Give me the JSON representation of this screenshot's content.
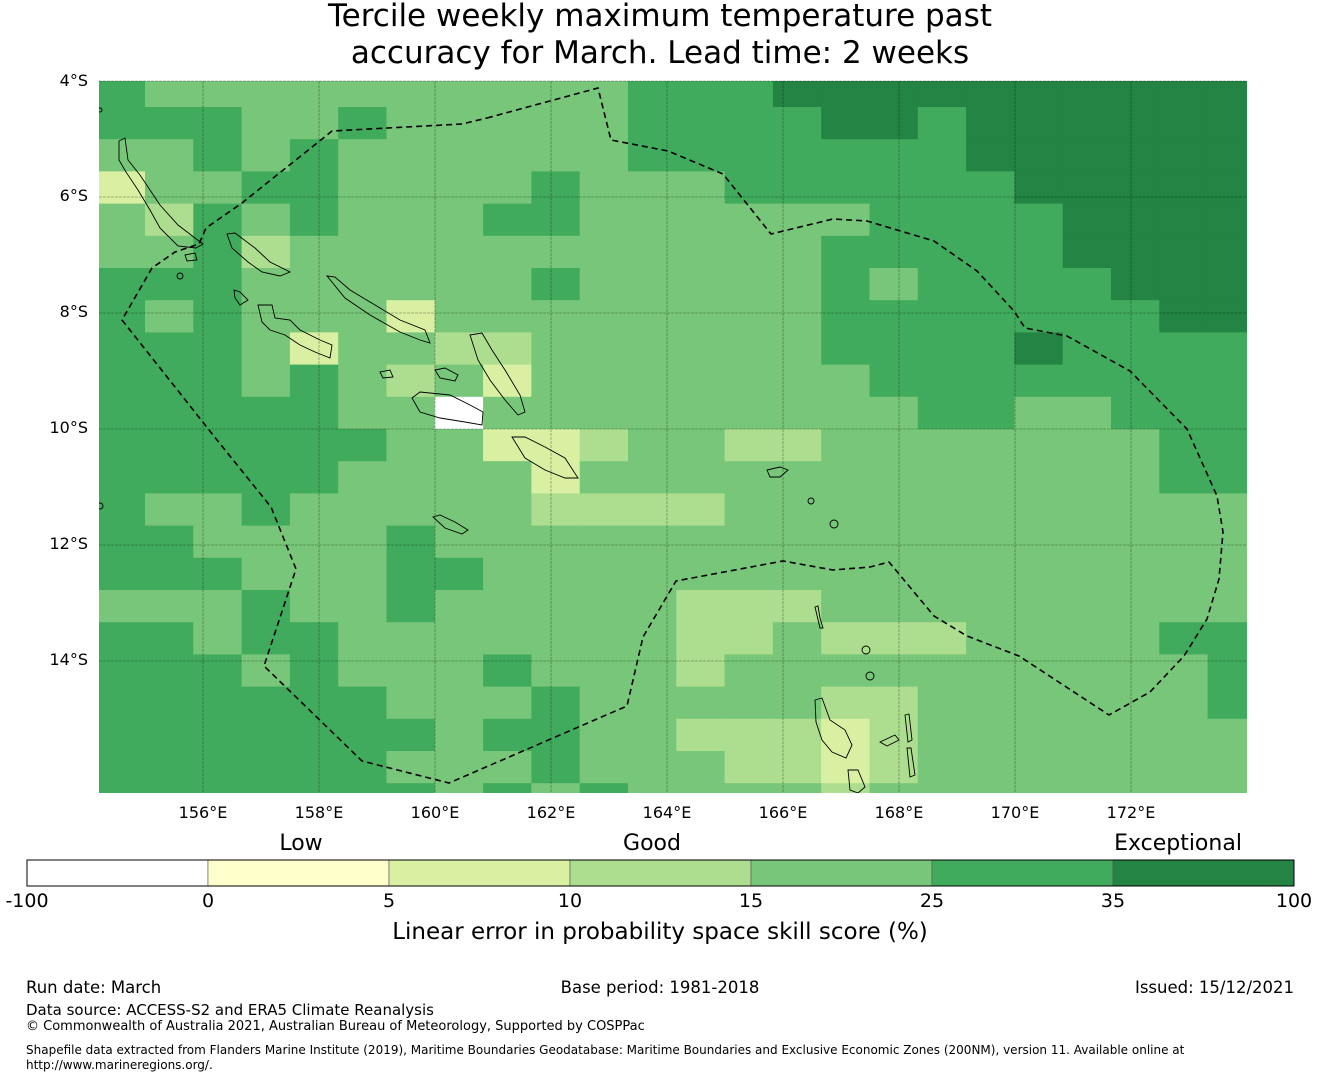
{
  "title": {
    "line1": "Tercile weekly maximum temperature past",
    "line2": "accuracy for March. Lead time: 2 weeks"
  },
  "axes": {
    "lat_labels": [
      "4°S",
      "6°S",
      "8°S",
      "10°S",
      "12°S",
      "14°S"
    ],
    "lon_labels": [
      "156°E",
      "158°E",
      "160°E",
      "162°E",
      "164°E",
      "166°E",
      "168°E",
      "170°E",
      "172°E"
    ]
  },
  "map_data": {
    "extent": {
      "lon_min": 154.2,
      "lon_max": 173.8,
      "lat_min": -16.3,
      "lat_max": -4.0
    },
    "cell_size_deg": 0.833,
    "category_codes": "0=-100..0, 1=0..5, 2=5..10, 3=10..15, 4=15..25, 5=25..35, 6=35..100",
    "grid_rows": [
      "544444444445556666666666",
      "555445444445555665666666",
      "445454444445555555666666",
      "244554444544455555566666",
      "435454445544444455556666",
      "445344444444444555556666",
      "555444444544444545555666",
      "545444244444444555555566",
      "555424433444444555565555",
      "555454342444444455555555",
      "555554404444444445544555",
      "555555442234433444444455",
      "555554444244444444444455",
      "544544444333344444444444",
      "554444544444444444444444",
      "555444554444444444444444",
      "444544544444333444444444",
      "554554444444334333444455",
      "555454445444344444444445",
      "555555444544444334444445",
      "555555545544333234444444",
      "555555444544433234444444",
      "555555545454444344444444"
    ]
  },
  "colorbar": {
    "categories": [
      "Low",
      "Good",
      "Exceptional"
    ],
    "tick_labels": [
      "-100",
      "0",
      "5",
      "10",
      "15",
      "25",
      "35",
      "100"
    ],
    "colors": [
      "#ffffff",
      "#ffffcc",
      "#d9f0a3",
      "#addd8e",
      "#78c679",
      "#41ab5d",
      "#238443"
    ],
    "title": "Linear error in probability space skill score (%)"
  },
  "footer": {
    "run_date": "Run date: March",
    "base_period": "Base period: 1981-2018",
    "issued": "Issued: 15/12/2021",
    "data_source": "Data source: ACCESS-S2 and ERA5 Climate Reanalysis",
    "copyright": "© Commonwealth of Australia 2021, Australian Bureau of Meteorology, Supported by COSPPac",
    "shapefile_line1": "Shapefile data extracted from Flanders Marine Institute (2019), Maritime Boundaries Geodatabase: Maritime Boundaries and Exclusive Economic Zones (200NM), version 11. Available online at",
    "shapefile_line2": "http://www.marineregions.org/."
  }
}
